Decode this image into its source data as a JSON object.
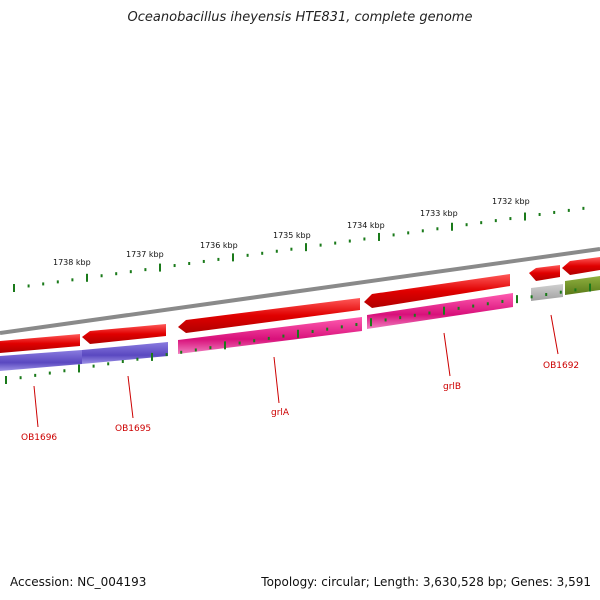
{
  "title": "Oceanobacillus iheyensis HTE831, complete genome",
  "footer": {
    "accession_label": "Accession:",
    "accession": "NC_004193",
    "topology_label": "Topology:",
    "topology": "circular",
    "length_label": "Length:",
    "length": "3,630,528 bp",
    "genes_label": "Genes:",
    "genes": "3,591"
  },
  "scale": {
    "unit": "kbp",
    "major_ticks": [
      1738,
      1737,
      1736,
      1735,
      1734,
      1733,
      1732
    ]
  },
  "gene_labels": [
    "OB1696",
    "OB1695",
    "grlA",
    "grlB",
    "OB1692"
  ],
  "colors": {
    "backbone": "#8a8a8a",
    "forward_strand": "#e80000",
    "tick": "#1a7a1a",
    "label": "#cc0000",
    "ob1696": "#6a5acd",
    "ob1695": "#6a5acd",
    "grlA": "#e0208a",
    "grlB": "#e0208a",
    "ob1692": "#b0b0b0",
    "ob1691": "#6b8e23"
  }
}
